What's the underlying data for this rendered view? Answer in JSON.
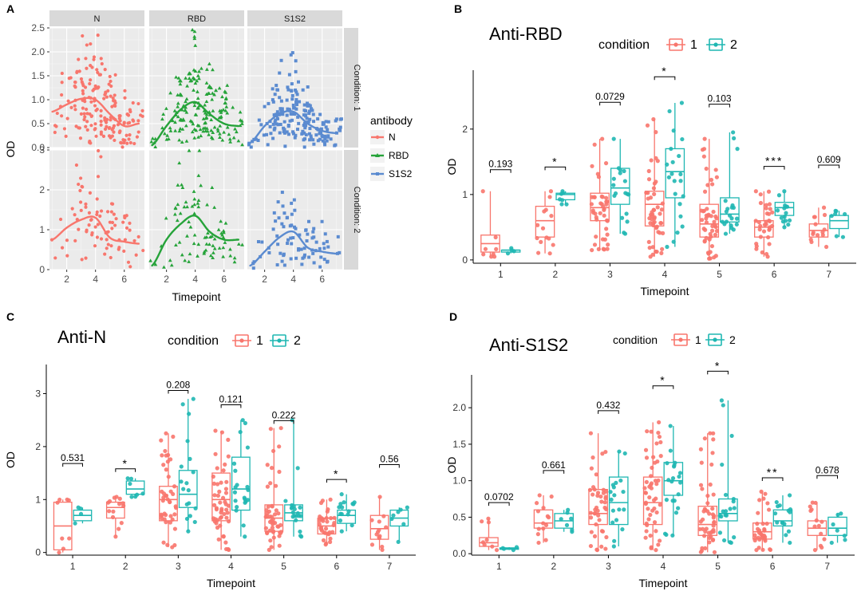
{
  "chart_data": [
    {
      "panel": "A",
      "type": "scatter",
      "facets": {
        "columns": [
          "N",
          "RBD",
          "S1S2"
        ],
        "rows": [
          "Condition: 1",
          "Condition: 2"
        ]
      },
      "xlabel": "Timepoint",
      "ylabel": "OD",
      "xticks": [
        "2",
        "4",
        "6"
      ],
      "xlim": [
        0.8,
        7.4
      ],
      "rows_y": [
        {
          "ylim": [
            0,
            2.5
          ],
          "yticks": [
            "0.0",
            "0.5",
            "1.0",
            "1.5",
            "2.0",
            "2.5"
          ],
          "tick_values": [
            0,
            0.5,
            1,
            1.5,
            2,
            2.5
          ]
        },
        {
          "ylim": [
            0,
            3
          ],
          "yticks": [
            "0",
            "1",
            "2",
            "3"
          ],
          "tick_values": [
            0,
            1,
            2,
            3
          ]
        }
      ],
      "legend": {
        "title": "antibody",
        "entries": [
          {
            "label": "N",
            "color": "#F8766D",
            "shape": "circle"
          },
          {
            "label": "RBD",
            "color": "#26A33A",
            "shape": "triangle"
          },
          {
            "label": "S1S2",
            "color": "#5B8BD0",
            "shape": "square"
          }
        ]
      },
      "smooth": {
        "x": [
          1,
          2,
          3,
          4,
          5,
          6,
          7
        ],
        "N": {
          "c1": [
            0.75,
            0.9,
            1.02,
            1.0,
            0.7,
            0.45,
            0.5
          ],
          "c2": [
            0.75,
            1.05,
            1.25,
            1.3,
            0.8,
            0.7,
            0.65
          ]
        },
        "RBD": {
          "c1": [
            0.05,
            0.45,
            0.8,
            0.95,
            0.7,
            0.5,
            0.45
          ],
          "c2": [
            0.1,
            0.75,
            1.15,
            1.35,
            0.95,
            0.75,
            0.75
          ]
        },
        "S1S2": {
          "c1": [
            0.1,
            0.45,
            0.7,
            0.75,
            0.5,
            0.35,
            0.3
          ],
          "c2": [
            0.1,
            0.45,
            0.8,
            0.95,
            0.55,
            0.45,
            0.4
          ]
        }
      },
      "point_counts_per_timepoint": [
        7,
        12,
        40,
        45,
        42,
        30,
        12
      ]
    },
    {
      "panel": "B",
      "type": "box",
      "title": "Anti-RBD",
      "xlabel": "Timepoint",
      "ylabel": "OD",
      "categories": [
        "1",
        "2",
        "3",
        "4",
        "5",
        "6",
        "7"
      ],
      "ylim": [
        -0.05,
        2.9
      ],
      "yticks": [
        "0",
        "1",
        "2"
      ],
      "tick_values": [
        0,
        1,
        2
      ],
      "legend": {
        "title": "condition",
        "entries": [
          {
            "label": "1",
            "color": "#F8766D"
          },
          {
            "label": "2",
            "color": "#1FB7B2"
          }
        ]
      },
      "series": [
        {
          "name": "1",
          "boxes": [
            [
              0.05,
              0.12,
              0.25,
              0.38,
              1.05
            ],
            [
              0.1,
              0.35,
              0.6,
              0.82,
              1.05
            ],
            [
              0.15,
              0.6,
              0.8,
              1.02,
              1.85
            ],
            [
              0.05,
              0.52,
              0.85,
              1.05,
              2.15
            ],
            [
              0.02,
              0.35,
              0.55,
              0.85,
              1.85
            ],
            [
              0.05,
              0.35,
              0.5,
              0.6,
              1.05
            ],
            [
              0.2,
              0.35,
              0.45,
              0.55,
              0.8
            ]
          ]
        },
        {
          "name": "2",
          "boxes": [
            [
              0.1,
              0.12,
              0.15,
              0.15,
              0.18
            ],
            [
              0.85,
              0.92,
              1.0,
              1.02,
              1.05
            ],
            [
              0.4,
              0.85,
              1.1,
              1.4,
              1.85
            ],
            [
              0.2,
              0.95,
              1.35,
              1.7,
              2.4
            ],
            [
              0.4,
              0.58,
              0.7,
              0.95,
              1.95
            ],
            [
              0.5,
              0.68,
              0.8,
              0.88,
              1.05
            ],
            [
              0.35,
              0.48,
              0.6,
              0.68,
              0.75
            ]
          ]
        }
      ],
      "annotations": [
        "0.193",
        "*",
        "0.0729",
        "*",
        "0.103",
        "***",
        "0.609"
      ],
      "annotation_y": [
        1.38,
        1.42,
        2.41,
        2.8,
        2.38,
        1.43,
        1.45
      ]
    },
    {
      "panel": "C",
      "type": "box",
      "title": "Anti-N",
      "xlabel": "Timepoint",
      "ylabel": "OD",
      "categories": [
        "1",
        "2",
        "3",
        "4",
        "5",
        "6",
        "7"
      ],
      "ylim": [
        -0.05,
        3.55
      ],
      "yticks": [
        "0",
        "1",
        "2",
        "3"
      ],
      "tick_values": [
        0,
        1,
        2,
        3
      ],
      "legend": {
        "title": "condition",
        "entries": [
          {
            "label": "1",
            "color": "#F8766D"
          },
          {
            "label": "2",
            "color": "#1FB7B2"
          }
        ]
      },
      "series": [
        {
          "name": "1",
          "boxes": [
            [
              0.0,
              0.05,
              0.5,
              0.95,
              1.0
            ],
            [
              0.3,
              0.65,
              0.85,
              0.95,
              1.05
            ],
            [
              0.1,
              0.6,
              1.0,
              1.25,
              2.25
            ],
            [
              0.05,
              0.6,
              1.0,
              1.5,
              2.3
            ],
            [
              0.05,
              0.4,
              0.65,
              0.9,
              2.35
            ],
            [
              0.15,
              0.35,
              0.5,
              0.65,
              1.0
            ],
            [
              0.05,
              0.25,
              0.45,
              0.7,
              1.05
            ]
          ]
        },
        {
          "name": "2",
          "boxes": [
            [
              0.55,
              0.6,
              0.7,
              0.8,
              0.85
            ],
            [
              1.05,
              1.1,
              1.2,
              1.35,
              1.4
            ],
            [
              0.4,
              0.85,
              1.1,
              1.55,
              2.9
            ],
            [
              0.3,
              0.8,
              1.2,
              1.8,
              2.5
            ],
            [
              0.3,
              0.6,
              0.75,
              0.9,
              2.5
            ],
            [
              0.4,
              0.55,
              0.7,
              0.8,
              1.1
            ],
            [
              0.2,
              0.5,
              0.65,
              0.8,
              0.85
            ]
          ]
        }
      ],
      "annotations": [
        "0.531",
        "*",
        "0.208",
        "0.121",
        "0.222",
        "*",
        "0.56"
      ],
      "annotation_y": [
        1.68,
        1.58,
        3.06,
        2.79,
        2.49,
        1.38,
        1.66
      ]
    },
    {
      "panel": "D",
      "type": "box",
      "title": "Anti-S1S2",
      "xlabel": "Timepoint",
      "ylabel": "OD",
      "categories": [
        "1",
        "2",
        "3",
        "4",
        "5",
        "6",
        "7"
      ],
      "ylim": [
        -0.02,
        2.45
      ],
      "yticks": [
        "0.0",
        "0.5",
        "1.0",
        "1.5",
        "2.0"
      ],
      "tick_values": [
        0,
        0.5,
        1,
        1.5,
        2
      ],
      "legend": {
        "title": "condition",
        "entries": [
          {
            "label": "1",
            "color": "#F8766D"
          },
          {
            "label": "2",
            "color": "#1FB7B2"
          }
        ]
      },
      "series": [
        {
          "name": "1",
          "boxes": [
            [
              0.05,
              0.1,
              0.15,
              0.22,
              0.48
            ],
            [
              0.15,
              0.35,
              0.42,
              0.6,
              0.8
            ],
            [
              0.05,
              0.4,
              0.55,
              0.88,
              1.65
            ],
            [
              0.05,
              0.4,
              0.7,
              1.05,
              1.8
            ],
            [
              0.02,
              0.25,
              0.4,
              0.65,
              1.65
            ],
            [
              0.05,
              0.2,
              0.3,
              0.42,
              0.85
            ],
            [
              0.05,
              0.25,
              0.35,
              0.45,
              0.7
            ]
          ]
        },
        {
          "name": "2",
          "boxes": [
            [
              0.05,
              0.06,
              0.07,
              0.08,
              0.09
            ],
            [
              0.3,
              0.35,
              0.45,
              0.55,
              0.6
            ],
            [
              0.1,
              0.4,
              0.7,
              1.05,
              1.4
            ],
            [
              0.25,
              0.8,
              1.0,
              1.25,
              1.75
            ],
            [
              0.15,
              0.45,
              0.55,
              0.75,
              2.1
            ],
            [
              0.15,
              0.38,
              0.45,
              0.6,
              0.8
            ],
            [
              0.15,
              0.25,
              0.35,
              0.5,
              0.55
            ]
          ]
        }
      ],
      "annotations": [
        "0.0702",
        "0.661",
        "0.432",
        "*",
        "*",
        "**",
        "0.678"
      ],
      "annotation_y": [
        0.7,
        1.14,
        1.96,
        2.3,
        2.5,
        1.04,
        1.07
      ]
    }
  ],
  "panel_labels": [
    "A",
    "B",
    "C",
    "D"
  ]
}
